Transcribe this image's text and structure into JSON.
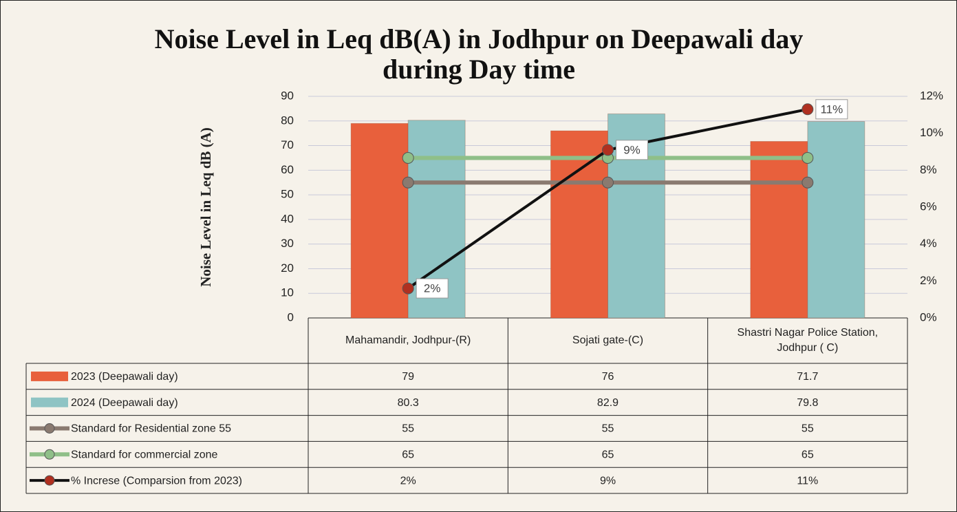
{
  "chart_data": {
    "type": "bar",
    "title": "Noise Level in Leq dB(A) in Jodhpur on Deepawali day during Day time",
    "y_label": "Noise Level in Leq dB (A)",
    "categories": [
      "Mahamandir, Jodhpur-(R)",
      "Sojati gate-(C)",
      "Shastri Nagar Police Station, Jodhpur ( C)"
    ],
    "series": [
      {
        "name": "2023 (Deepawali day)",
        "type": "bar",
        "color": "#e8603c",
        "values": [
          79,
          76,
          71.7
        ]
      },
      {
        "name": "2024 (Deepawali day)",
        "type": "bar",
        "color": "#8fc4c4",
        "values": [
          80.3,
          82.9,
          79.8
        ]
      },
      {
        "name": "Standard for Residential zone  55",
        "type": "line",
        "color": "#8a7a70",
        "values": [
          55,
          55,
          55
        ]
      },
      {
        "name": "Standard for commercial zone",
        "type": "line",
        "color": "#8fbf88",
        "values": [
          65,
          65,
          65
        ]
      },
      {
        "name": "% Increse (Comparsion from 2023)",
        "type": "line",
        "color": "#111111",
        "marker_color": "#b03020",
        "axis": "y2",
        "values": [
          1.6,
          9.1,
          11.3
        ],
        "value_labels": [
          "2%",
          "9%",
          "11%"
        ]
      }
    ],
    "ylim": [
      0,
      90
    ],
    "yticks": [
      0,
      10,
      20,
      30,
      40,
      50,
      60,
      70,
      80,
      90
    ],
    "y2lim": [
      0,
      12
    ],
    "y2ticks": [
      {
        "value": 0,
        "label": "0%"
      },
      {
        "value": 2,
        "label": "2%"
      },
      {
        "value": 4,
        "label": "4%"
      },
      {
        "value": 6,
        "label": "6%"
      },
      {
        "value": 8,
        "label": "8%"
      },
      {
        "value": 10,
        "label": "10%"
      },
      {
        "value": 12,
        "label": "12%"
      }
    ],
    "grid": true
  }
}
